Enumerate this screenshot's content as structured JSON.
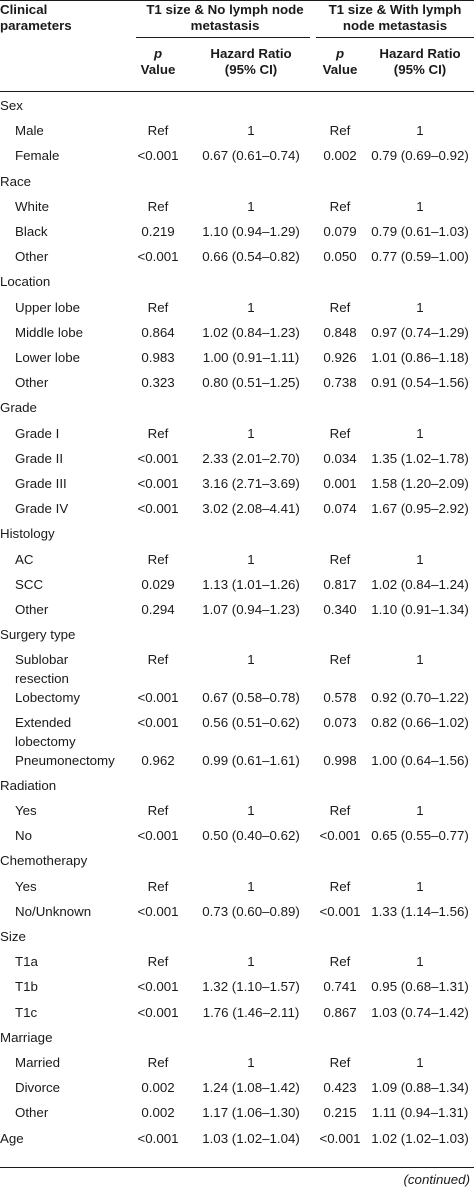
{
  "header": {
    "col1": "Clinical parameters",
    "group1": "T1 size & No lymph node metastasis",
    "group2": "T1 size & With lymph node metastasis",
    "p_value_label_a": "p",
    "p_value_label_b": "Value",
    "hr_label_a": "Hazard Ratio",
    "hr_label_b": "(95% CI)"
  },
  "rows": [
    {
      "param": "Sex",
      "type": "group"
    },
    {
      "param": "Male",
      "p1": "Ref",
      "hr1": "1",
      "p2": "Ref",
      "hr2": "1"
    },
    {
      "param": "Female",
      "p1": "<0.001",
      "hr1": "0.67 (0.61–0.74)",
      "p2": "0.002",
      "hr2": "0.79 (0.69–0.92)"
    },
    {
      "param": "Race",
      "type": "group"
    },
    {
      "param": "White",
      "p1": "Ref",
      "hr1": "1",
      "p2": "Ref",
      "hr2": "1"
    },
    {
      "param": "Black",
      "p1": "0.219",
      "hr1": "1.10 (0.94–1.29)",
      "p2": "0.079",
      "hr2": "0.79 (0.61–1.03)"
    },
    {
      "param": "Other",
      "p1": "<0.001",
      "hr1": "0.66 (0.54–0.82)",
      "p2": "0.050",
      "hr2": "0.77 (0.59–1.00)"
    },
    {
      "param": "Location",
      "type": "group"
    },
    {
      "param": "Upper lobe",
      "p1": "Ref",
      "hr1": "1",
      "p2": "Ref",
      "hr2": "1"
    },
    {
      "param": "Middle lobe",
      "p1": "0.864",
      "hr1": "1.02 (0.84–1.23)",
      "p2": "0.848",
      "hr2": "0.97 (0.74–1.29)"
    },
    {
      "param": "Lower lobe",
      "p1": "0.983",
      "hr1": "1.00 (0.91–1.11)",
      "p2": "0.926",
      "hr2": "1.01 (0.86–1.18)"
    },
    {
      "param": "Other",
      "p1": "0.323",
      "hr1": "0.80 (0.51–1.25)",
      "p2": "0.738",
      "hr2": "0.91 (0.54–1.56)"
    },
    {
      "param": "Grade",
      "type": "group"
    },
    {
      "param": "Grade I",
      "p1": "Ref",
      "hr1": "1",
      "p2": "Ref",
      "hr2": "1"
    },
    {
      "param": "Grade II",
      "p1": "<0.001",
      "hr1": "2.33 (2.01–2.70)",
      "p2": "0.034",
      "hr2": "1.35 (1.02–1.78)"
    },
    {
      "param": "Grade III",
      "p1": "<0.001",
      "hr1": "3.16 (2.71–3.69)",
      "p2": "0.001",
      "hr2": "1.58 (1.20–2.09)"
    },
    {
      "param": "Grade IV",
      "p1": "<0.001",
      "hr1": "3.02 (2.08–4.41)",
      "p2": "0.074",
      "hr2": "1.67 (0.95–2.92)"
    },
    {
      "param": "Histology",
      "type": "group"
    },
    {
      "param": "AC",
      "p1": "Ref",
      "hr1": "1",
      "p2": "Ref",
      "hr2": "1"
    },
    {
      "param": "SCC",
      "p1": "0.029",
      "hr1": "1.13 (1.01–1.26)",
      "p2": "0.817",
      "hr2": "1.02 (0.84–1.24)"
    },
    {
      "param": "Other",
      "p1": "0.294",
      "hr1": "1.07 (0.94–1.23)",
      "p2": "0.340",
      "hr2": "1.10 (0.91–1.34)"
    },
    {
      "param": "Surgery type",
      "type": "group"
    },
    {
      "param": "Sublobar resection",
      "p1": "Ref",
      "hr1": "1",
      "p2": "Ref",
      "hr2": "1",
      "tall": true
    },
    {
      "param": "Lobectomy",
      "p1": "<0.001",
      "hr1": "0.67 (0.58–0.78)",
      "p2": "0.578",
      "hr2": "0.92 (0.70–1.22)"
    },
    {
      "param": "Extended lobectomy",
      "p1": "<0.001",
      "hr1": "0.56 (0.51–0.62)",
      "p2": "0.073",
      "hr2": "0.82 (0.66–1.02)",
      "tall": true
    },
    {
      "param": "Pneumonectomy",
      "p1": "0.962",
      "hr1": "0.99 (0.61–1.61)",
      "p2": "0.998",
      "hr2": "1.00 (0.64–1.56)"
    },
    {
      "param": "Radiation",
      "type": "group"
    },
    {
      "param": "Yes",
      "p1": "Ref",
      "hr1": "1",
      "p2": "Ref",
      "hr2": "1"
    },
    {
      "param": "No",
      "p1": "<0.001",
      "hr1": "0.50 (0.40–0.62)",
      "p2": "<0.001",
      "hr2": "0.65 (0.55–0.77)"
    },
    {
      "param": "Chemotherapy",
      "type": "group"
    },
    {
      "param": "Yes",
      "p1": "Ref",
      "hr1": "1",
      "p2": "Ref",
      "hr2": "1"
    },
    {
      "param": "No/Unknown",
      "p1": "<0.001",
      "hr1": "0.73 (0.60–0.89)",
      "p2": "<0.001",
      "hr2": "1.33 (1.14–1.56)"
    },
    {
      "param": "Size",
      "type": "group"
    },
    {
      "param": "T1a",
      "p1": "Ref",
      "hr1": "1",
      "p2": "Ref",
      "hr2": "1"
    },
    {
      "param": "T1b",
      "p1": "<0.001",
      "hr1": "1.32 (1.10–1.57)",
      "p2": "0.741",
      "hr2": "0.95 (0.68–1.31)"
    },
    {
      "param": "T1c",
      "p1": "<0.001",
      "hr1": "1.76 (1.46–2.11)",
      "p2": "0.867",
      "hr2": "1.03 (0.74–1.42)"
    },
    {
      "param": "Marriage",
      "type": "group"
    },
    {
      "param": "Married",
      "p1": "Ref",
      "hr1": "1",
      "p2": "Ref",
      "hr2": "1"
    },
    {
      "param": "Divorce",
      "p1": "0.002",
      "hr1": "1.24 (1.08–1.42)",
      "p2": "0.423",
      "hr2": "1.09 (0.88–1.34)"
    },
    {
      "param": "Other",
      "p1": "0.002",
      "hr1": "1.17 (1.06–1.30)",
      "p2": "0.215",
      "hr2": "1.11 (0.94–1.31)"
    },
    {
      "param": "Age",
      "p1": "<0.001",
      "hr1": "1.03 (1.02–1.04)",
      "p2": "<0.001",
      "hr2": "1.02 (1.02–1.03)",
      "noindent": true
    }
  ],
  "footer": "(continued)"
}
